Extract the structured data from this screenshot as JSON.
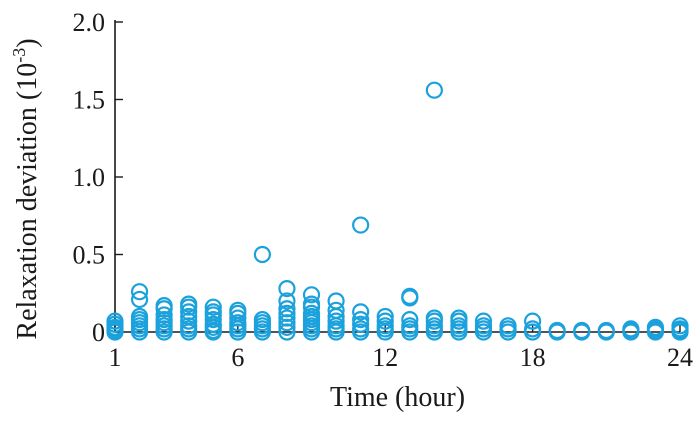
{
  "chart_data": {
    "type": "scatter",
    "xlabel": "Time (hour)",
    "ylabel": {
      "main": "Relaxation deviation (10",
      "exponent": "-3",
      "suffix": ")"
    },
    "xlim": [
      1,
      24
    ],
    "ylim": [
      0,
      2.0
    ],
    "xticks": [
      1,
      6,
      12,
      18,
      24
    ],
    "xtick_labels": [
      "1",
      "6",
      "12",
      "18",
      "24"
    ],
    "yticks": [
      0,
      0.5,
      1.0,
      1.5,
      2.0
    ],
    "ytick_labels": [
      "0",
      "0.5",
      "1.0",
      "1.5",
      "2.0"
    ],
    "grid": false,
    "marker": "open-circle",
    "marker_color": "#1ba1dc",
    "series": [
      {
        "points": [
          [
            1,
            0.0
          ],
          [
            1,
            0.01
          ],
          [
            1,
            0.02
          ],
          [
            1,
            0.03
          ],
          [
            1,
            0.05
          ],
          [
            1,
            0.07
          ],
          [
            2,
            0.0
          ],
          [
            2,
            0.02
          ],
          [
            2,
            0.04
          ],
          [
            2,
            0.06
          ],
          [
            2,
            0.08
          ],
          [
            2,
            0.1
          ],
          [
            2,
            0.21
          ],
          [
            2,
            0.26
          ],
          [
            3,
            0.0
          ],
          [
            3,
            0.02
          ],
          [
            3,
            0.04
          ],
          [
            3,
            0.06
          ],
          [
            3,
            0.08
          ],
          [
            3,
            0.11
          ],
          [
            3,
            0.15
          ],
          [
            3,
            0.17
          ],
          [
            4,
            0.0
          ],
          [
            4,
            0.02
          ],
          [
            4,
            0.04
          ],
          [
            4,
            0.07
          ],
          [
            4,
            0.1
          ],
          [
            4,
            0.13
          ],
          [
            4,
            0.16
          ],
          [
            4,
            0.18
          ],
          [
            5,
            0.0
          ],
          [
            5,
            0.01
          ],
          [
            5,
            0.03
          ],
          [
            5,
            0.05
          ],
          [
            5,
            0.08
          ],
          [
            5,
            0.11
          ],
          [
            5,
            0.13
          ],
          [
            5,
            0.16
          ],
          [
            6,
            0.0
          ],
          [
            6,
            0.02
          ],
          [
            6,
            0.04
          ],
          [
            6,
            0.06
          ],
          [
            6,
            0.09
          ],
          [
            6,
            0.12
          ],
          [
            6,
            0.14
          ],
          [
            7,
            0.0
          ],
          [
            7,
            0.02
          ],
          [
            7,
            0.04
          ],
          [
            7,
            0.06
          ],
          [
            7,
            0.08
          ],
          [
            7,
            0.5
          ],
          [
            8,
            0.0
          ],
          [
            8,
            0.03
          ],
          [
            8,
            0.06
          ],
          [
            8,
            0.09
          ],
          [
            8,
            0.12
          ],
          [
            8,
            0.15
          ],
          [
            8,
            0.2
          ],
          [
            8,
            0.28
          ],
          [
            9,
            0.0
          ],
          [
            9,
            0.02
          ],
          [
            9,
            0.04
          ],
          [
            9,
            0.06
          ],
          [
            9,
            0.08
          ],
          [
            9,
            0.1
          ],
          [
            9,
            0.12
          ],
          [
            9,
            0.16
          ],
          [
            9,
            0.18
          ],
          [
            9,
            0.24
          ],
          [
            10,
            0.0
          ],
          [
            10,
            0.02
          ],
          [
            10,
            0.04
          ],
          [
            10,
            0.07
          ],
          [
            10,
            0.1
          ],
          [
            10,
            0.14
          ],
          [
            10,
            0.2
          ],
          [
            11,
            0.0
          ],
          [
            11,
            0.02
          ],
          [
            11,
            0.05
          ],
          [
            11,
            0.08
          ],
          [
            11,
            0.13
          ],
          [
            11,
            0.69
          ],
          [
            12,
            0.0
          ],
          [
            12,
            0.02
          ],
          [
            12,
            0.04
          ],
          [
            12,
            0.07
          ],
          [
            12,
            0.1
          ],
          [
            13,
            0.0
          ],
          [
            13,
            0.02
          ],
          [
            13,
            0.04
          ],
          [
            13,
            0.08
          ],
          [
            13,
            0.22
          ],
          [
            13,
            0.23
          ],
          [
            14,
            0.0
          ],
          [
            14,
            0.02
          ],
          [
            14,
            0.04
          ],
          [
            14,
            0.07
          ],
          [
            14,
            0.09
          ],
          [
            14,
            1.56
          ],
          [
            15,
            0.0
          ],
          [
            15,
            0.02
          ],
          [
            15,
            0.04
          ],
          [
            15,
            0.07
          ],
          [
            15,
            0.09
          ],
          [
            16,
            0.0
          ],
          [
            16,
            0.02
          ],
          [
            16,
            0.04
          ],
          [
            16,
            0.07
          ],
          [
            17,
            0.0
          ],
          [
            17,
            0.02
          ],
          [
            17,
            0.04
          ],
          [
            18,
            0.0
          ],
          [
            18,
            0.02
          ],
          [
            18,
            0.07
          ],
          [
            19,
            0.0
          ],
          [
            19,
            0.01
          ],
          [
            20,
            0.0
          ],
          [
            20,
            0.01
          ],
          [
            21,
            0.0
          ],
          [
            21,
            0.01
          ],
          [
            22,
            0.0
          ],
          [
            22,
            0.01
          ],
          [
            22,
            0.02
          ],
          [
            23,
            0.0
          ],
          [
            23,
            0.01
          ],
          [
            23,
            0.02
          ],
          [
            23,
            0.03
          ],
          [
            24,
            0.0
          ],
          [
            24,
            0.01
          ],
          [
            24,
            0.02
          ],
          [
            24,
            0.04
          ]
        ]
      }
    ]
  }
}
